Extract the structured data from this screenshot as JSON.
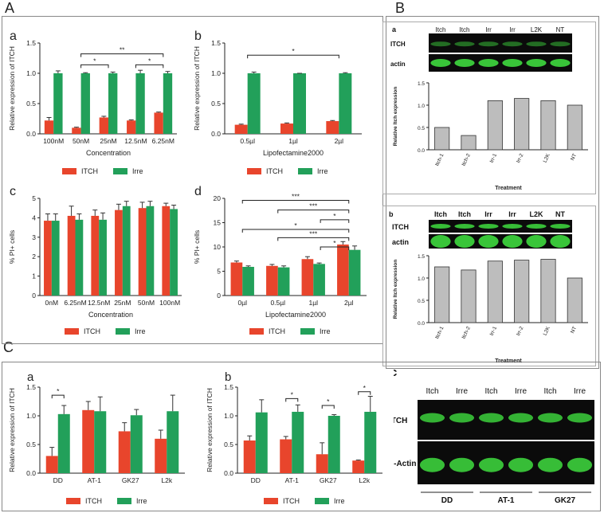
{
  "panels": {
    "A": "A",
    "B": "B",
    "C": "C"
  },
  "colors": {
    "itch": "#e8452c",
    "irre": "#22a05a",
    "gray": "#bdbdbd",
    "band": "#3cd03c"
  },
  "chart_data": [
    {
      "id": "Aa",
      "letter": "a",
      "type": "bar",
      "title": "",
      "ylabel": "Relative expression of ITCH",
      "xlabel": "Concentration",
      "categories": [
        "100nM",
        "50nM",
        "25nM",
        "12.5nM",
        "6.25nM"
      ],
      "series": [
        {
          "name": "ITCH",
          "values": [
            0.22,
            0.1,
            0.27,
            0.22,
            0.35
          ],
          "errors": [
            0.05,
            0.01,
            0.02,
            0.01,
            0.01
          ]
        },
        {
          "name": "Irre",
          "values": [
            1.0,
            1.0,
            1.0,
            1.0,
            1.0
          ],
          "errors": [
            0.04,
            0.01,
            0.02,
            0.05,
            0.03
          ]
        }
      ],
      "ylim": [
        0,
        1.5
      ],
      "yticks": [
        "0.0",
        "0.5",
        "1.0",
        "1.5"
      ],
      "ytickvals": [
        0,
        0.5,
        1.0,
        1.5
      ],
      "legend": [
        "ITCH",
        "Irre"
      ],
      "annotations": [
        {
          "from": 1,
          "to": 4,
          "y": 1.32,
          "label": "**"
        },
        {
          "from": 1,
          "to": 2,
          "y": 1.14,
          "label": "*"
        },
        {
          "from": 3,
          "to": 4,
          "y": 1.14,
          "label": "*"
        }
      ]
    },
    {
      "id": "Ab",
      "letter": "b",
      "type": "bar",
      "title": "",
      "ylabel": "Relative expression of ITCH",
      "xlabel": "Lipofectamine2000",
      "categories": [
        "0.5µl",
        "1µl",
        "2µl"
      ],
      "series": [
        {
          "name": "ITCH",
          "values": [
            0.15,
            0.17,
            0.21
          ],
          "errors": [
            0.01,
            0.01,
            0.01
          ]
        },
        {
          "name": "Irre",
          "values": [
            1.0,
            1.0,
            1.0
          ],
          "errors": [
            0.02,
            0.0,
            0.01
          ]
        }
      ],
      "ylim": [
        0,
        1.5
      ],
      "yticks": [
        "0.0",
        "0.5",
        "1.0",
        "1.5"
      ],
      "ytickvals": [
        0,
        0.5,
        1.0,
        1.5
      ],
      "legend": [
        "ITCH",
        "Irre"
      ],
      "annotations": [
        {
          "from": 0,
          "to": 2,
          "y": 1.3,
          "label": "*"
        }
      ]
    },
    {
      "id": "Ac",
      "letter": "c",
      "type": "bar",
      "title": "",
      "ylabel": "% PI+ cells",
      "xlabel": "Concentration",
      "categories": [
        "0nM",
        "6.25nM",
        "12.5nM",
        "25nM",
        "50nM",
        "100nM"
      ],
      "series": [
        {
          "name": "ITCH",
          "values": [
            3.85,
            4.1,
            4.1,
            4.4,
            4.5,
            4.6
          ],
          "errors": [
            0.35,
            0.5,
            0.3,
            0.3,
            0.3,
            0.15
          ]
        },
        {
          "name": "Irre",
          "values": [
            3.85,
            3.9,
            3.9,
            4.6,
            4.6,
            4.45
          ],
          "errors": [
            0.35,
            0.3,
            0.35,
            0.25,
            0.25,
            0.2
          ]
        }
      ],
      "ylim": [
        0,
        5
      ],
      "yticks": [
        "0",
        "1",
        "2",
        "3",
        "4",
        "5"
      ],
      "ytickvals": [
        0,
        1,
        2,
        3,
        4,
        5
      ],
      "legend": [
        "ITCH",
        "Irre"
      ],
      "annotations": []
    },
    {
      "id": "Ad",
      "letter": "d",
      "type": "bar",
      "title": "",
      "ylabel": "% PI+ cells",
      "xlabel": "Lipofectamine2000",
      "categories": [
        "0µl",
        "0.5µl",
        "1µl",
        "2µl"
      ],
      "series": [
        {
          "name": "ITCH",
          "values": [
            6.8,
            6.1,
            7.5,
            10.5
          ],
          "errors": [
            0.3,
            0.3,
            0.5,
            0.6
          ]
        },
        {
          "name": "Irre",
          "values": [
            5.9,
            5.8,
            6.5,
            9.4
          ],
          "errors": [
            0.2,
            0.3,
            0.2,
            0.8
          ]
        }
      ],
      "ylim": [
        0,
        20
      ],
      "yticks": [
        "0",
        "5",
        "10",
        "15",
        "20"
      ],
      "ytickvals": [
        0,
        5,
        10,
        15,
        20
      ],
      "legend": [
        "ITCH",
        "Irre"
      ],
      "annotations": [
        {
          "from": 0,
          "to": 3,
          "y": 19.6,
          "label": "***"
        },
        {
          "from": 1,
          "to": 3,
          "y": 17.6,
          "label": "***"
        },
        {
          "from": 2.2,
          "to": 3,
          "y": 15.6,
          "label": "*"
        },
        {
          "from": 0,
          "to": 3,
          "y": 13.6,
          "label": "*"
        },
        {
          "from": 1,
          "to": 3,
          "y": 11.9,
          "label": "***"
        },
        {
          "from": 2.2,
          "to": 3,
          "y": 10.0,
          "label": "*"
        }
      ]
    },
    {
      "id": "Ca",
      "letter": "a",
      "type": "bar",
      "title": "",
      "ylabel": "Relative expression of ITCH",
      "xlabel": "",
      "categories": [
        "DD",
        "AT-1",
        "GK27",
        "L2k"
      ],
      "series": [
        {
          "name": "ITCH",
          "values": [
            0.3,
            1.1,
            0.73,
            0.6
          ],
          "errors": [
            0.15,
            0.15,
            0.15,
            0.15
          ]
        },
        {
          "name": "Irre",
          "values": [
            1.03,
            1.08,
            1.01,
            1.08
          ],
          "errors": [
            0.15,
            0.25,
            0.1,
            0.28
          ]
        }
      ],
      "ylim": [
        0,
        1.5
      ],
      "yticks": [
        "0.0",
        "0.5",
        "1.0",
        "1.5"
      ],
      "ytickvals": [
        0,
        0.5,
        1.0,
        1.5
      ],
      "legend": [
        "ITCH",
        "Irre"
      ],
      "annotations": [
        {
          "from": 0,
          "to": 0.42,
          "y": 1.36,
          "label": "*",
          "pair": true
        }
      ]
    },
    {
      "id": "Cb",
      "letter": "b",
      "type": "bar",
      "title": "",
      "ylabel": "Relative expression of ITCH",
      "xlabel": "",
      "categories": [
        "DD",
        "AT-1",
        "GK27",
        "L2k"
      ],
      "series": [
        {
          "name": "ITCH",
          "values": [
            0.57,
            0.59,
            0.33,
            0.22
          ],
          "errors": [
            0.08,
            0.05,
            0.2,
            0.01
          ]
        },
        {
          "name": "Irre",
          "values": [
            1.06,
            1.07,
            1.0,
            1.07
          ],
          "errors": [
            0.22,
            0.12,
            0.02,
            0.27
          ]
        }
      ],
      "ylim": [
        0,
        1.5
      ],
      "yticks": [
        "0.0",
        "0.5",
        "1.0",
        "1.5"
      ],
      "ytickvals": [
        0,
        0.5,
        1.0,
        1.5
      ],
      "legend": [
        "ITCH",
        "Irre"
      ],
      "annotations": [
        {
          "from": 1,
          "to": 1.42,
          "y": 1.3,
          "label": "*",
          "pair": true
        },
        {
          "from": 2,
          "to": 2.42,
          "y": 1.18,
          "label": "*",
          "pair": true
        },
        {
          "from": 3,
          "to": 3.42,
          "y": 1.42,
          "label": "*",
          "pair": true
        }
      ]
    },
    {
      "id": "Ba",
      "letter": "a",
      "type": "bar",
      "title": "",
      "ylabel": "Relative Itch expression",
      "xlabel": "Treatment",
      "categories": [
        "Itch-1",
        "Itch-2",
        "Irr-1",
        "Irr-2",
        "L2K",
        "NT"
      ],
      "series": [
        {
          "name": "Relative Itch expression",
          "values": [
            0.5,
            0.32,
            1.1,
            1.15,
            1.1,
            1.0
          ]
        }
      ],
      "ylim": [
        0,
        1.5
      ],
      "yticks": [
        "0.0",
        "0.5",
        "1.0",
        "1.5"
      ],
      "ytickvals": [
        0,
        0.5,
        1.0,
        1.5
      ],
      "legend": [],
      "annotations": []
    },
    {
      "id": "Bb",
      "letter": "b",
      "type": "bar",
      "title": "",
      "ylabel": "Relative Itch expression",
      "xlabel": "Treatment",
      "categories": [
        "Itch-1",
        "Itch-2",
        "Irr-1",
        "Irr-2",
        "L2K",
        "NT"
      ],
      "series": [
        {
          "name": "Relative Itch expression",
          "values": [
            1.25,
            1.18,
            1.38,
            1.4,
            1.42,
            1.0
          ]
        }
      ],
      "ylim": [
        0,
        1.5
      ],
      "yticks": [
        "0.0",
        "0.5",
        "1.0",
        "1.5"
      ],
      "ytickvals": [
        0,
        0.5,
        1.0,
        1.5
      ],
      "legend": [],
      "annotations": []
    }
  ],
  "blots": {
    "Ba": {
      "letter": "a",
      "lanes": [
        "Itch",
        "Itch",
        "Irr",
        "Irr",
        "L2K",
        "NT"
      ],
      "rows": [
        "ITCH",
        "actin"
      ]
    },
    "Bb": {
      "letter": "b",
      "lanes": [
        "Itch",
        "Itch",
        "Irr",
        "Irr",
        "L2K",
        "NT"
      ],
      "rows": [
        "ITCH",
        "actin"
      ]
    },
    "Cc": {
      "letter": "c",
      "lanes": [
        "Itch",
        "Irre",
        "Itch",
        "Irre",
        "Itch",
        "Irre"
      ],
      "rows": [
        "ITCH",
        "b-Actin"
      ],
      "groups": [
        "DD",
        "AT-1",
        "GK27"
      ]
    }
  }
}
